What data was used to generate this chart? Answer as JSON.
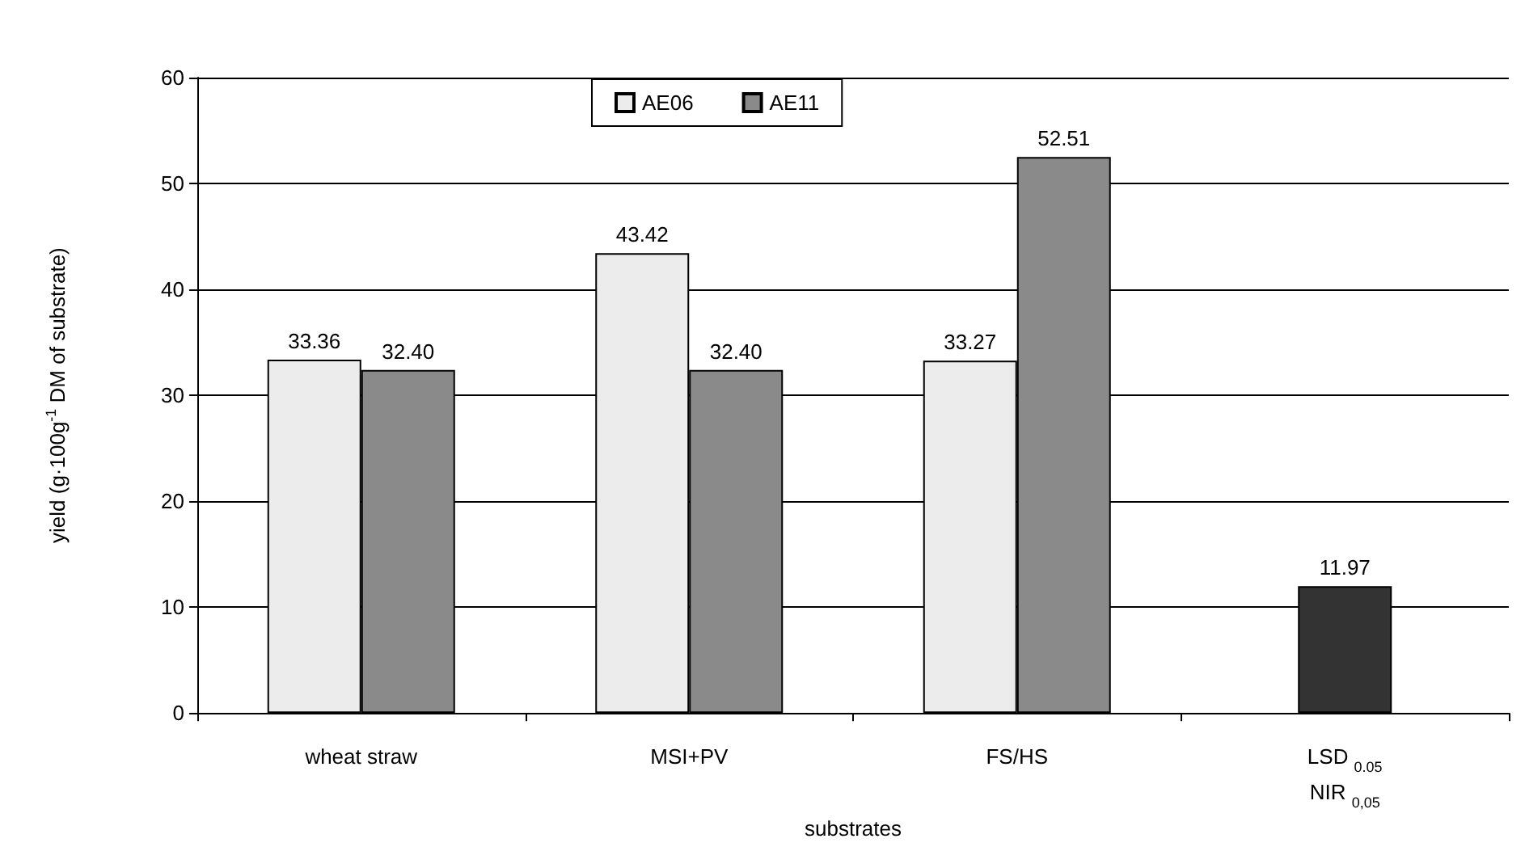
{
  "chart_data": {
    "type": "bar",
    "xlabel": "substrates",
    "ylabel": "yield (g·100g$^{-1}$ DM of substrate)",
    "categories": [
      "wheat straw",
      "MSI+PV",
      "FS/HS",
      "LSD $_{0.05}$\nNIR $_{0,05}$"
    ],
    "series": [
      {
        "name": "AE06",
        "color": "#ececec",
        "values": [
          33.36,
          43.42,
          33.27,
          null
        ],
        "value_labels": [
          "33.36",
          "43.42",
          "33.27",
          null
        ]
      },
      {
        "name": "AE11",
        "color": "#8a8a8a",
        "values": [
          32.4,
          32.4,
          52.51,
          null
        ],
        "value_labels": [
          "32.40",
          "32.40",
          "52.51",
          null
        ]
      },
      {
        "color": "#333333",
        "values": [
          null,
          null,
          null,
          11.97
        ],
        "value_labels": [
          null,
          null,
          null,
          "11.97"
        ]
      }
    ],
    "ylim": [
      0,
      60
    ],
    "yticks": [
      0,
      10,
      20,
      30,
      40,
      50,
      60
    ],
    "grid": "y",
    "legend": "top"
  }
}
